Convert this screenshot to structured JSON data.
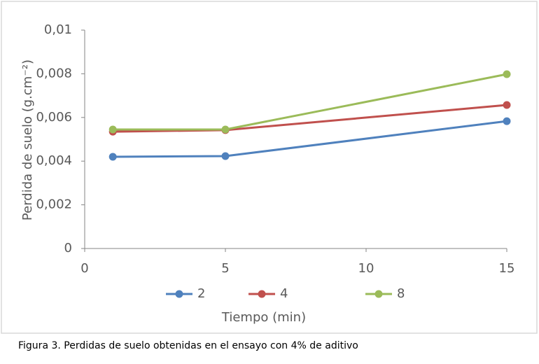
{
  "chart_data": {
    "type": "line",
    "y_label": "Perdida de suelo (g.cm⁻²)",
    "x_label": "Tiempo (min)",
    "caption": "Figura 3. Perdidas de suelo obtenidas en el ensayo con 4% de aditivo",
    "x": [
      1,
      5,
      15
    ],
    "series": [
      {
        "name": "2",
        "color": "#4f81bd",
        "values": [
          0.0042,
          0.00423,
          0.00583
        ]
      },
      {
        "name": "4",
        "color": "#c0504d",
        "values": [
          0.00535,
          0.00542,
          0.00657
        ]
      },
      {
        "name": "8",
        "color": "#9bbb59",
        "values": [
          0.00545,
          0.00545,
          0.00798
        ]
      }
    ],
    "xlim": [
      0,
      15
    ],
    "xticks": [
      0,
      5,
      10,
      15
    ],
    "ylim": [
      0,
      0.01
    ],
    "yticks": [
      0,
      {
        "value": 0.002,
        "label": "0,002"
      },
      {
        "value": 0.004,
        "label": "0,004"
      },
      {
        "value": 0.006,
        "label": "0,006"
      },
      {
        "value": 0.008,
        "label": "0,008"
      },
      {
        "value": 0.01,
        "label": "0,01"
      }
    ],
    "grid": false,
    "legend": "bottom"
  }
}
